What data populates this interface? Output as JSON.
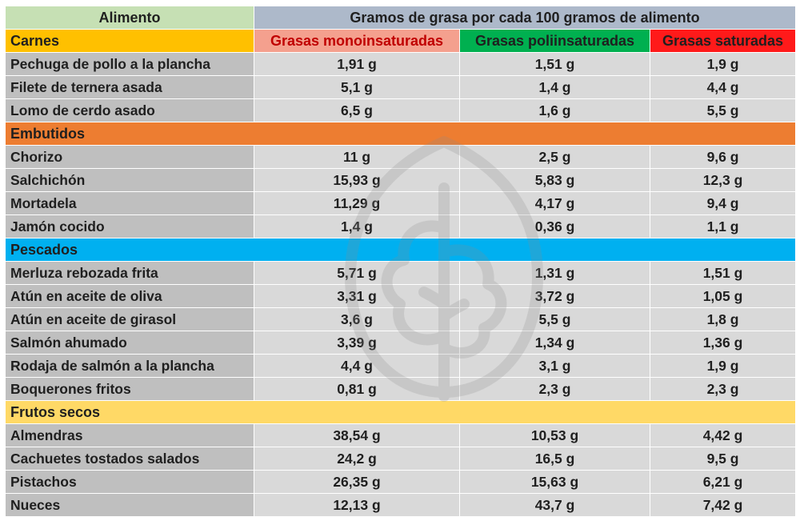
{
  "header": {
    "food_label": "Alimento",
    "main_label": "Gramos de grasa por cada 100 gramos de alimento"
  },
  "columns": [
    {
      "label": "Grasas monoinsaturadas",
      "color": "#f4a08e",
      "text_color": "#c00000"
    },
    {
      "label": "Grasas poliinsaturadas",
      "color": "#00b050",
      "text_color": "#1f1f1f"
    },
    {
      "label": "Grasas saturadas",
      "color": "#ff1a1a",
      "text_color": "#1f1f1f"
    }
  ],
  "sections": [
    {
      "name": "Carnes",
      "color": "#ffc000",
      "rows": [
        {
          "name": "Pechuga de pollo a la plancha",
          "values": [
            "1,91 g",
            "1,51 g",
            "1,9 g"
          ]
        },
        {
          "name": "Filete de ternera asada",
          "values": [
            "5,1 g",
            "1,4 g",
            "4,4 g"
          ]
        },
        {
          "name": "Lomo de cerdo asado",
          "values": [
            "6,5 g",
            "1,6 g",
            "5,5 g"
          ]
        }
      ]
    },
    {
      "name": "Embutidos",
      "color": "#ed7d31",
      "rows": [
        {
          "name": "Chorizo",
          "values": [
            "11 g",
            "2,5 g",
            "9,6 g"
          ]
        },
        {
          "name": "Salchichón",
          "values": [
            "15,93 g",
            "5,83 g",
            "12,3 g"
          ]
        },
        {
          "name": "Mortadela",
          "values": [
            "11,29 g",
            "4,17 g",
            "9,4 g"
          ]
        },
        {
          "name": "Jamón cocido",
          "values": [
            "1,4 g",
            "0,36 g",
            "1,1 g"
          ]
        }
      ]
    },
    {
      "name": "Pescados",
      "color": "#00b0f0",
      "rows": [
        {
          "name": "Merluza rebozada frita",
          "values": [
            "5,71 g",
            "1,31 g",
            "1,51 g"
          ]
        },
        {
          "name": "Atún en aceite de oliva",
          "values": [
            "3,31 g",
            "3,72 g",
            "1,05 g"
          ]
        },
        {
          "name": "Atún en aceite de girasol",
          "values": [
            "3,6 g",
            "5,5 g",
            "1,8 g"
          ]
        },
        {
          "name": "Salmón ahumado",
          "values": [
            "3,39 g",
            "1,34 g",
            "1,36 g"
          ]
        },
        {
          "name": "Rodaja de salmón a la plancha",
          "values": [
            "4,4 g",
            "3,1 g",
            "1,9 g"
          ]
        },
        {
          "name": "Boquerones fritos",
          "values": [
            "0,81 g",
            "2,3 g",
            "2,3 g"
          ]
        }
      ]
    },
    {
      "name": "Frutos secos",
      "color": "#ffd966",
      "rows": [
        {
          "name": "Almendras",
          "values": [
            "38,54 g",
            "10,53 g",
            "4,42 g"
          ]
        },
        {
          "name": "Cachuetes tostados salados",
          "values": [
            "24,2 g",
            "16,5 g",
            "9,5 g"
          ]
        },
        {
          "name": "Pistachos",
          "values": [
            "26,35 g",
            "15,63 g",
            "6,21 g"
          ]
        },
        {
          "name": "Nueces",
          "values": [
            "12,13 g",
            "43,7 g",
            "7,42 g"
          ]
        }
      ]
    }
  ],
  "watermark": {
    "icon": "leaf-logo-icon",
    "color": "#8c8c8c"
  }
}
